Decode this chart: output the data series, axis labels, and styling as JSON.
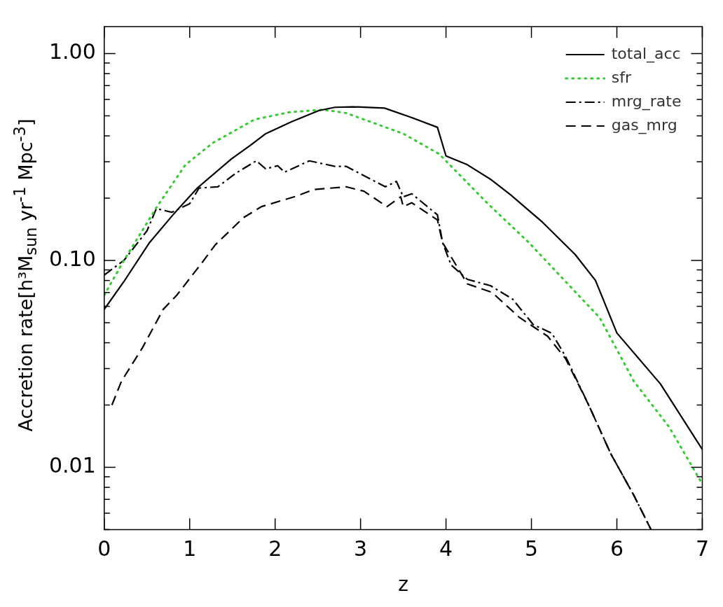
{
  "chart_data": {
    "type": "line",
    "xlabel": "z",
    "ylabel": "Accretion rate[h³M$_{sun}$ yr$^{-1}$ Mpc$^{-3}$]",
    "log": "y",
    "legend": "top right",
    "grid": false,
    "marker": "none",
    "xlim": [
      0,
      7
    ],
    "xticks": [
      0,
      1,
      2,
      3,
      4,
      5,
      6,
      7
    ],
    "ylim": [
      0.005,
      1.35
    ],
    "yticks": [
      {
        "value": 0.005,
        "label": null
      },
      {
        "value": 0.006,
        "label": null
      },
      {
        "value": 0.007,
        "label": null
      },
      {
        "value": 0.008,
        "label": null
      },
      {
        "value": 0.009,
        "label": null
      },
      0.01,
      {
        "value": 0.02,
        "label": null
      },
      {
        "value": 0.03,
        "label": null
      },
      {
        "value": 0.04,
        "label": null
      },
      {
        "value": 0.05,
        "label": null
      },
      {
        "value": 0.06,
        "label": null
      },
      {
        "value": 0.07,
        "label": null
      },
      {
        "value": 0.08,
        "label": null
      },
      {
        "value": 0.09,
        "label": null
      },
      {
        "value": 0.1,
        "label": "0.10"
      },
      {
        "value": 0.2,
        "label": null
      },
      {
        "value": 0.3,
        "label": null
      },
      {
        "value": 0.4,
        "label": null
      },
      {
        "value": 0.5,
        "label": null
      },
      {
        "value": 0.6,
        "label": null
      },
      {
        "value": 0.7,
        "label": null
      },
      {
        "value": 0.8,
        "label": null
      },
      {
        "value": 0.9,
        "label": null
      },
      {
        "value": 1,
        "label": "1.00"
      }
    ],
    "series": [
      {
        "name": "total_acc",
        "color": "#000000",
        "line_style": "solid",
        "x": [
          0,
          0.23,
          0.53,
          0.82,
          1.09,
          1.49,
          1.71,
          1.89,
          2.19,
          2.51,
          2.7,
          2.91,
          3.28,
          3.6,
          3.9,
          4.0,
          4.25,
          4.52,
          4.76,
          5.13,
          5.51,
          5.75,
          6.0,
          6.51,
          7.0
        ],
        "values": [
          0.058,
          0.079,
          0.122,
          0.169,
          0.224,
          0.31,
          0.36,
          0.41,
          0.468,
          0.53,
          0.55,
          0.553,
          0.545,
          0.49,
          0.44,
          0.32,
          0.29,
          0.247,
          0.207,
          0.153,
          0.107,
          0.08,
          0.0446,
          0.0253,
          0.0122
        ]
      },
      {
        "name": "sfr",
        "color": "#33cc33",
        "line_style": "dotted",
        "x": [
          0,
          0.23,
          0.61,
          0.95,
          1.27,
          1.76,
          2.16,
          2.56,
          2.83,
          3.5,
          3.92,
          4.49,
          4.97,
          5.4,
          5.8,
          6.2,
          6.61,
          7.0
        ],
        "values": [
          0.068,
          0.1,
          0.18,
          0.29,
          0.37,
          0.48,
          0.52,
          0.536,
          0.516,
          0.41,
          0.327,
          0.188,
          0.122,
          0.079,
          0.0528,
          0.026,
          0.0157,
          0.0083
        ]
      },
      {
        "name": "mrg_rate",
        "color": "#000000",
        "line_style": "dashdot",
        "x": [
          0,
          0.23,
          0.5,
          0.61,
          0.79,
          1.0,
          1.11,
          1.33,
          1.54,
          1.78,
          1.89,
          2.03,
          2.11,
          2.4,
          2.7,
          2.83,
          3.29,
          3.42,
          3.5,
          3.6,
          3.9,
          3.96,
          4.06,
          4.25,
          4.52,
          4.78,
          5.02,
          5.24,
          5.4,
          5.67,
          5.93,
          6.2,
          6.4
        ],
        "values": [
          0.085,
          0.1,
          0.139,
          0.178,
          0.171,
          0.188,
          0.224,
          0.227,
          0.264,
          0.303,
          0.277,
          0.287,
          0.267,
          0.303,
          0.285,
          0.285,
          0.227,
          0.241,
          0.203,
          0.21,
          0.166,
          0.122,
          0.095,
          0.081,
          0.0755,
          0.065,
          0.049,
          0.0444,
          0.0343,
          0.02,
          0.0116,
          0.0073,
          0.005
        ]
      },
      {
        "name": "gas_mrg",
        "color": "#000000",
        "line_style": "dashed",
        "x": [
          0.09,
          0.2,
          0.45,
          0.69,
          0.85,
          1.14,
          1.3,
          1.63,
          1.84,
          2.24,
          2.45,
          2.83,
          3.04,
          3.31,
          3.47,
          3.5,
          3.6,
          3.9,
          3.96,
          4.25,
          4.54,
          4.86,
          5.19,
          5.4,
          5.67,
          5.93,
          6.2,
          6.4
        ],
        "values": [
          0.02,
          0.026,
          0.038,
          0.058,
          0.068,
          0.097,
          0.119,
          0.161,
          0.182,
          0.204,
          0.22,
          0.227,
          0.216,
          0.182,
          0.203,
          0.182,
          0.19,
          0.157,
          0.122,
          0.077,
          0.07,
          0.053,
          0.043,
          0.0335,
          0.02,
          0.0116,
          0.0073,
          0.005
        ]
      }
    ]
  }
}
